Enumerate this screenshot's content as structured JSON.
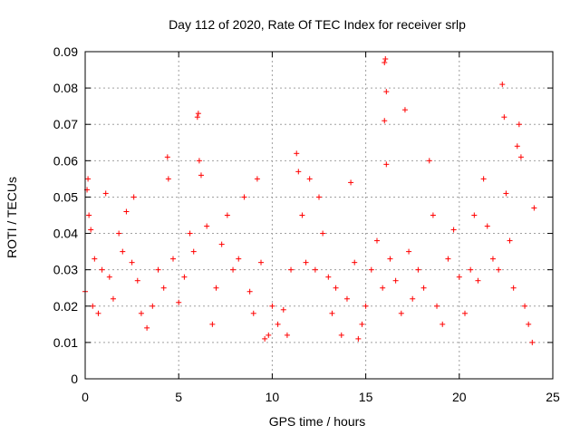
{
  "chart_data": {
    "type": "scatter",
    "title": "Day 112 of 2020, Rate Of TEC Index for receiver srlp",
    "xlabel": "GPS time / hours",
    "ylabel": "ROTI / TECUs",
    "xlim": [
      0,
      25
    ],
    "ylim": [
      0,
      0.09
    ],
    "xticks": [
      "0",
      "5",
      "10",
      "15",
      "20",
      "25"
    ],
    "yticks": [
      "0",
      "0.01",
      "0.02",
      "0.03",
      "0.04",
      "0.05",
      "0.06",
      "0.07",
      "0.08",
      "0.09"
    ],
    "grid": true,
    "marker": "+",
    "color": "#ff0000",
    "series": [
      {
        "name": "ROTI",
        "points": [
          [
            0.0,
            0.024
          ],
          [
            0.1,
            0.052
          ],
          [
            0.15,
            0.055
          ],
          [
            0.2,
            0.045
          ],
          [
            0.3,
            0.041
          ],
          [
            0.4,
            0.02
          ],
          [
            0.5,
            0.033
          ],
          [
            0.7,
            0.018
          ],
          [
            0.9,
            0.03
          ],
          [
            1.1,
            0.051
          ],
          [
            1.3,
            0.028
          ],
          [
            1.5,
            0.022
          ],
          [
            1.8,
            0.04
          ],
          [
            2.0,
            0.035
          ],
          [
            2.2,
            0.046
          ],
          [
            2.5,
            0.032
          ],
          [
            2.6,
            0.05
          ],
          [
            2.8,
            0.027
          ],
          [
            3.0,
            0.018
          ],
          [
            3.3,
            0.014
          ],
          [
            3.6,
            0.02
          ],
          [
            3.9,
            0.03
          ],
          [
            4.2,
            0.025
          ],
          [
            4.4,
            0.061
          ],
          [
            4.45,
            0.055
          ],
          [
            4.7,
            0.033
          ],
          [
            5.0,
            0.021
          ],
          [
            5.3,
            0.028
          ],
          [
            5.6,
            0.04
          ],
          [
            5.8,
            0.035
          ],
          [
            6.0,
            0.072
          ],
          [
            6.05,
            0.073
          ],
          [
            6.1,
            0.06
          ],
          [
            6.2,
            0.056
          ],
          [
            6.5,
            0.042
          ],
          [
            6.8,
            0.015
          ],
          [
            7.0,
            0.025
          ],
          [
            7.3,
            0.037
          ],
          [
            7.6,
            0.045
          ],
          [
            7.9,
            0.03
          ],
          [
            8.2,
            0.033
          ],
          [
            8.5,
            0.05
          ],
          [
            8.8,
            0.024
          ],
          [
            9.0,
            0.018
          ],
          [
            9.2,
            0.055
          ],
          [
            9.4,
            0.032
          ],
          [
            9.6,
            0.011
          ],
          [
            9.8,
            0.012
          ],
          [
            10.0,
            0.02
          ],
          [
            10.3,
            0.015
          ],
          [
            10.6,
            0.019
          ],
          [
            10.8,
            0.012
          ],
          [
            11.0,
            0.03
          ],
          [
            11.3,
            0.062
          ],
          [
            11.4,
            0.057
          ],
          [
            11.6,
            0.045
          ],
          [
            11.8,
            0.032
          ],
          [
            12.0,
            0.055
          ],
          [
            12.3,
            0.03
          ],
          [
            12.5,
            0.05
          ],
          [
            12.7,
            0.04
          ],
          [
            13.0,
            0.028
          ],
          [
            13.2,
            0.018
          ],
          [
            13.4,
            0.025
          ],
          [
            13.7,
            0.012
          ],
          [
            14.0,
            0.022
          ],
          [
            14.2,
            0.054
          ],
          [
            14.4,
            0.032
          ],
          [
            14.6,
            0.011
          ],
          [
            14.8,
            0.015
          ],
          [
            15.0,
            0.02
          ],
          [
            15.3,
            0.03
          ],
          [
            15.6,
            0.038
          ],
          [
            15.9,
            0.025
          ],
          [
            16.0,
            0.087
          ],
          [
            16.05,
            0.088
          ],
          [
            16.1,
            0.079
          ],
          [
            16.0,
            0.071
          ],
          [
            16.1,
            0.059
          ],
          [
            16.3,
            0.033
          ],
          [
            16.6,
            0.027
          ],
          [
            16.9,
            0.018
          ],
          [
            17.1,
            0.074
          ],
          [
            17.3,
            0.035
          ],
          [
            17.5,
            0.022
          ],
          [
            17.8,
            0.03
          ],
          [
            18.1,
            0.025
          ],
          [
            18.4,
            0.06
          ],
          [
            18.6,
            0.045
          ],
          [
            18.8,
            0.02
          ],
          [
            19.1,
            0.015
          ],
          [
            19.4,
            0.033
          ],
          [
            19.7,
            0.041
          ],
          [
            20.0,
            0.028
          ],
          [
            20.3,
            0.018
          ],
          [
            20.6,
            0.03
          ],
          [
            20.8,
            0.045
          ],
          [
            21.0,
            0.027
          ],
          [
            21.3,
            0.055
          ],
          [
            21.5,
            0.042
          ],
          [
            21.8,
            0.033
          ],
          [
            22.1,
            0.03
          ],
          [
            22.3,
            0.081
          ],
          [
            22.4,
            0.072
          ],
          [
            22.5,
            0.051
          ],
          [
            22.7,
            0.038
          ],
          [
            22.9,
            0.025
          ],
          [
            23.1,
            0.064
          ],
          [
            23.2,
            0.07
          ],
          [
            23.3,
            0.061
          ],
          [
            23.5,
            0.02
          ],
          [
            23.7,
            0.015
          ],
          [
            23.9,
            0.01
          ],
          [
            24.0,
            0.047
          ]
        ]
      }
    ]
  }
}
